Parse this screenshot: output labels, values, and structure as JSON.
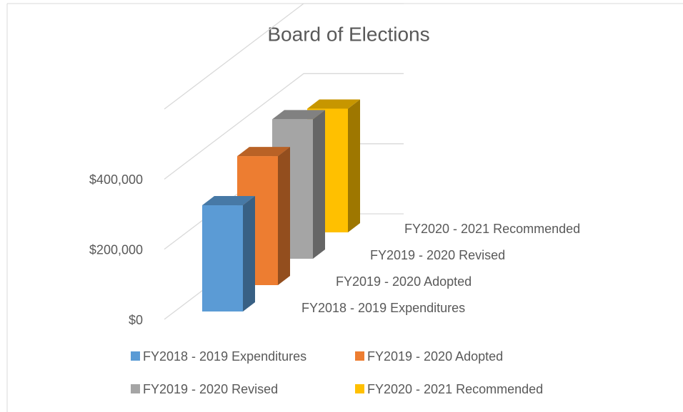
{
  "chart_data": {
    "type": "bar3d",
    "title": "Board of Elections",
    "series": [
      {
        "name": "FY2018 - 2019 Expenditures",
        "color": "#5b9bd5",
        "values": [
          303000
        ]
      },
      {
        "name": "FY2019 - 2020 Adopted",
        "color": "#ed7d31",
        "values": [
          368000
        ]
      },
      {
        "name": "FY2019 - 2020 Revised",
        "color": "#a5a5a5",
        "values": [
          398000
        ]
      },
      {
        "name": "FY2020 - 2021 Recommended",
        "color": "#ffc000",
        "values": [
          353000
        ]
      }
    ],
    "ylim": [
      0,
      600000
    ],
    "yticks": [
      {
        "value": 0,
        "label": "$0"
      },
      {
        "value": 200000,
        "label": "$200,000"
      },
      {
        "value": 400000,
        "label": "$400,000"
      }
    ],
    "grid": true,
    "legend": "bottom"
  }
}
